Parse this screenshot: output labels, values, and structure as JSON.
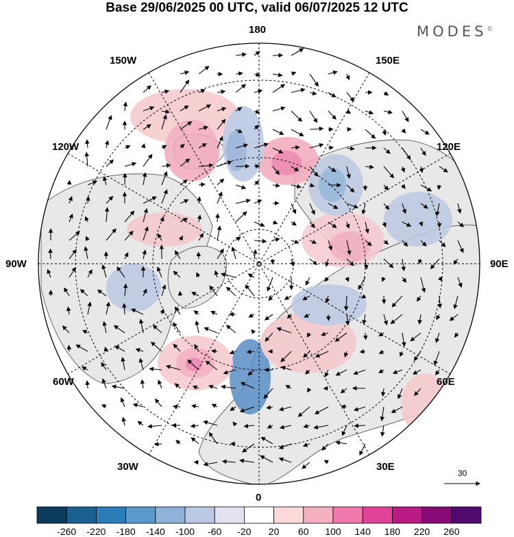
{
  "title": "Base 29/06/2025 00 UTC, valid 06/07/2025 12 UTC",
  "logo": {
    "text": "MODES",
    "mark": "©"
  },
  "longitude_labels": {
    "top": "180",
    "bottom": "0",
    "left": "90W",
    "right": "90E",
    "lon150W": "150W",
    "lon150E": "150E",
    "lon120W": "120W",
    "lon120E": "120E",
    "lon60W": "60W",
    "lon60E": "60E",
    "lon30W": "30W",
    "lon30E": "30E"
  },
  "reference_vector": {
    "value": "30"
  },
  "colorbar": {
    "ticks": [
      "-260",
      "-220",
      "-180",
      "-140",
      "-100",
      "-60",
      "-20",
      "20",
      "60",
      "100",
      "140",
      "180",
      "220",
      "260"
    ],
    "colors": [
      "#0d3b5c",
      "#1a6091",
      "#2b7db8",
      "#5a9bcb",
      "#8fb2d8",
      "#bcc9e3",
      "#e2e2f1",
      "#ffffff",
      "#fad9d9",
      "#f6b1be",
      "#f07aac",
      "#e04496",
      "#b81b82",
      "#860a78",
      "#4f0a6e"
    ]
  },
  "anomaly_blobs": [
    {
      "color": "#f6c8cc"
    },
    {
      "color": "#f3a9bc"
    },
    {
      "color": "#f3a9bc"
    },
    {
      "color": "#ec7ca9"
    },
    {
      "color": "#b7c6e1"
    },
    {
      "color": "#91aed6"
    },
    {
      "color": "#f7c9cf"
    },
    {
      "color": "#f3a9bc"
    },
    {
      "color": "#bcc9e3"
    },
    {
      "color": "#8fb2d8"
    },
    {
      "color": "#5a8fc5"
    },
    {
      "color": "#f6c8cc"
    },
    {
      "color": "#f3a9bc"
    },
    {
      "color": "#ec7ca9"
    },
    {
      "color": "#f6c8cc"
    },
    {
      "color": "#bcc9e3"
    },
    {
      "color": "#f6c8cc"
    },
    {
      "color": "#bcc9e3"
    },
    {
      "color": "#f6c8cc"
    },
    {
      "color": "#bcc9e3"
    }
  ]
}
